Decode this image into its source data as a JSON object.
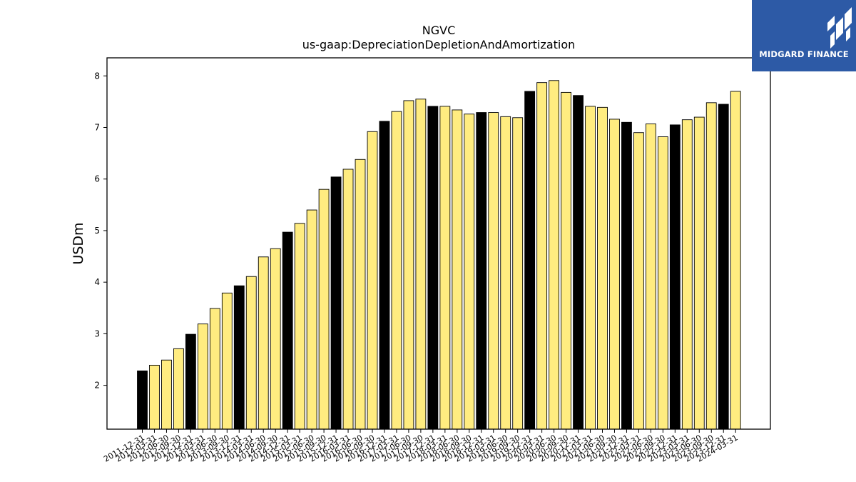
{
  "brand": {
    "name": "MIDGARD FINANCE",
    "bg_color": "#2d5aa6"
  },
  "chart_data": {
    "type": "bar",
    "title": "NGVC",
    "subtitle": "us-gaap:DepreciationDepletionAndAmortization",
    "xlabel": "",
    "ylabel": "USDm",
    "ylim": [
      1.15,
      8.35
    ],
    "yticks": [
      2,
      3,
      4,
      5,
      6,
      7,
      8
    ],
    "grid": false,
    "colors": {
      "highlight": "#000000",
      "normal": "#ffec80",
      "edge": "#000000"
    },
    "categories": [
      "2011-12-31",
      "2012-03-31",
      "2012-06-30",
      "2012-09-30",
      "2012-12-31",
      "2013-03-31",
      "2013-06-30",
      "2013-09-30",
      "2013-12-31",
      "2014-03-31",
      "2014-06-30",
      "2014-09-30",
      "2014-12-31",
      "2015-03-31",
      "2015-06-30",
      "2015-09-30",
      "2015-12-31",
      "2016-03-31",
      "2016-06-30",
      "2016-09-30",
      "2016-12-31",
      "2017-03-31",
      "2017-06-30",
      "2017-09-30",
      "2017-12-31",
      "2018-03-31",
      "2018-06-30",
      "2018-09-30",
      "2018-12-31",
      "2019-03-31",
      "2019-06-30",
      "2019-09-30",
      "2019-12-31",
      "2020-03-31",
      "2020-06-30",
      "2020-09-30",
      "2020-12-31",
      "2021-03-31",
      "2021-06-30",
      "2021-09-30",
      "2021-12-31",
      "2022-03-31",
      "2022-06-30",
      "2022-09-30",
      "2022-12-31",
      "2023-03-31",
      "2023-06-30",
      "2023-09-30",
      "2023-12-31",
      "2024-03-31"
    ],
    "values": [
      2.28,
      2.39,
      2.49,
      2.71,
      2.99,
      3.19,
      3.49,
      3.79,
      3.93,
      4.11,
      4.49,
      4.65,
      4.97,
      5.14,
      5.4,
      5.8,
      6.04,
      6.19,
      6.38,
      6.92,
      7.12,
      7.31,
      7.52,
      7.55,
      7.41,
      7.41,
      7.34,
      7.26,
      7.29,
      7.29,
      7.21,
      7.19,
      7.7,
      7.87,
      7.91,
      7.68,
      7.62,
      7.41,
      7.39,
      7.16,
      7.1,
      6.9,
      7.07,
      6.82,
      7.05,
      7.15,
      7.2,
      7.48,
      7.45,
      7.7
    ],
    "highlighted": [
      true,
      false,
      false,
      false,
      true,
      false,
      false,
      false,
      true,
      false,
      false,
      false,
      true,
      false,
      false,
      false,
      true,
      false,
      false,
      false,
      true,
      false,
      false,
      false,
      true,
      false,
      false,
      false,
      true,
      false,
      false,
      false,
      true,
      false,
      false,
      false,
      true,
      false,
      false,
      false,
      true,
      false,
      false,
      false,
      true,
      false,
      false,
      false,
      true,
      false
    ]
  }
}
